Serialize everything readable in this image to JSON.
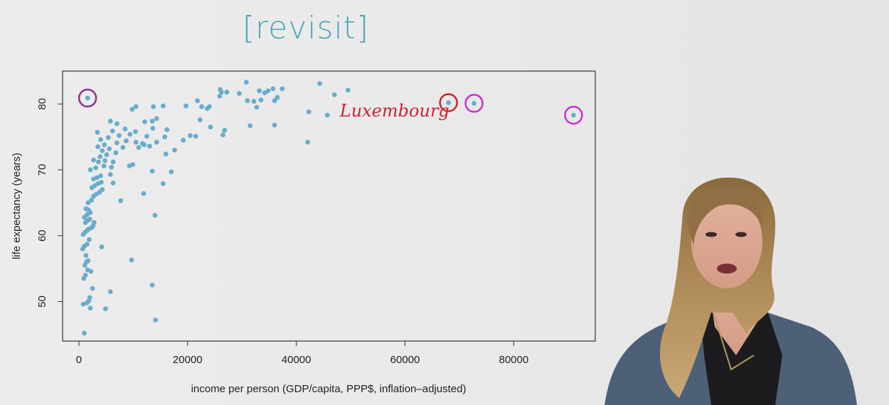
{
  "slide": {
    "title": "[revisit]"
  },
  "colors": {
    "points": "#6aaccb",
    "annotation_red": "#d3202e",
    "annotation_purple": "#8e2e8e",
    "annotation_magenta": "#d12bd1"
  },
  "chart_data": {
    "type": "scatter",
    "title": "",
    "xlabel": "income per person (GDP/capita, PPP$, inflation–adjusted)",
    "ylabel": "life expectancy (years)",
    "xlim": [
      -3000,
      95000
    ],
    "ylim": [
      44,
      85
    ],
    "xticks": [
      0,
      20000,
      40000,
      60000,
      80000
    ],
    "yticks": [
      50,
      60,
      70,
      80
    ],
    "grid": false,
    "annotations": [
      {
        "text": "Luxembourg",
        "color": "red",
        "x": 48000,
        "y": 78.1
      }
    ],
    "circled_points": [
      {
        "x": 1600,
        "y": 80.9,
        "color": "purple"
      },
      {
        "x": 68000,
        "y": 80.2,
        "color": "red"
      },
      {
        "x": 72700,
        "y": 80.1,
        "color": "magenta"
      },
      {
        "x": 91000,
        "y": 78.3,
        "color": "magenta"
      }
    ],
    "points": [
      [
        1000,
        45.2
      ],
      [
        800,
        49.6
      ],
      [
        1500,
        49.8
      ],
      [
        2000,
        50.6
      ],
      [
        1800,
        50.1
      ],
      [
        2100,
        49.0
      ],
      [
        4900,
        48.9
      ],
      [
        14100,
        47.2
      ],
      [
        13500,
        52.5
      ],
      [
        5800,
        51.5
      ],
      [
        2500,
        52.0
      ],
      [
        900,
        53.5
      ],
      [
        1200,
        54.0
      ],
      [
        1600,
        54.8
      ],
      [
        2200,
        54.6
      ],
      [
        1100,
        55.5
      ],
      [
        1400,
        56.0
      ],
      [
        1700,
        56.2
      ],
      [
        1300,
        57.0
      ],
      [
        9700,
        56.3
      ],
      [
        700,
        58.0
      ],
      [
        1000,
        58.4
      ],
      [
        1500,
        58.7
      ],
      [
        1900,
        59.4
      ],
      [
        4200,
        58.3
      ],
      [
        800,
        60.2
      ],
      [
        1100,
        60.5
      ],
      [
        1500,
        60.8
      ],
      [
        1800,
        61.0
      ],
      [
        2300,
        61.2
      ],
      [
        2600,
        61.5
      ],
      [
        1200,
        62.0
      ],
      [
        1600,
        62.3
      ],
      [
        2000,
        62.5
      ],
      [
        2800,
        62.0
      ],
      [
        1000,
        62.8
      ],
      [
        1500,
        63.2
      ],
      [
        2100,
        63.5
      ],
      [
        1300,
        64.1
      ],
      [
        1800,
        63.9
      ],
      [
        14000,
        63.1
      ],
      [
        1700,
        65.0
      ],
      [
        2300,
        65.4
      ],
      [
        2700,
        66.0
      ],
      [
        3200,
        66.3
      ],
      [
        3800,
        66.6
      ],
      [
        4300,
        67.0
      ],
      [
        11900,
        66.4
      ],
      [
        7700,
        65.3
      ],
      [
        2400,
        67.3
      ],
      [
        2900,
        67.6
      ],
      [
        3500,
        67.9
      ],
      [
        4100,
        68.1
      ],
      [
        6300,
        68.0
      ],
      [
        15500,
        67.9
      ],
      [
        2700,
        68.6
      ],
      [
        3300,
        68.8
      ],
      [
        4000,
        69.1
      ],
      [
        5800,
        69.3
      ],
      [
        13500,
        69.8
      ],
      [
        17000,
        69.7
      ],
      [
        2100,
        70.0
      ],
      [
        3100,
        70.3
      ],
      [
        4600,
        70.6
      ],
      [
        6000,
        70.4
      ],
      [
        9300,
        70.6
      ],
      [
        9900,
        70.8
      ],
      [
        2700,
        71.5
      ],
      [
        3600,
        71.2
      ],
      [
        4800,
        71.4
      ],
      [
        6300,
        71.2
      ],
      [
        3900,
        72.0
      ],
      [
        5100,
        72.3
      ],
      [
        6800,
        72.6
      ],
      [
        4300,
        72.9
      ],
      [
        5600,
        73.2
      ],
      [
        8100,
        73.4
      ],
      [
        11000,
        73.4
      ],
      [
        12000,
        73.8
      ],
      [
        13000,
        73.6
      ],
      [
        16000,
        72.4
      ],
      [
        3500,
        73.5
      ],
      [
        4700,
        73.8
      ],
      [
        7000,
        74.1
      ],
      [
        8700,
        74.4
      ],
      [
        10500,
        74.2
      ],
      [
        11700,
        74.0
      ],
      [
        14300,
        74.2
      ],
      [
        17600,
        73.0
      ],
      [
        4000,
        74.6
      ],
      [
        5400,
        74.9
      ],
      [
        7400,
        75.2
      ],
      [
        9400,
        75.4
      ],
      [
        12500,
        75.1
      ],
      [
        15800,
        75.0
      ],
      [
        19200,
        74.5
      ],
      [
        3400,
        75.7
      ],
      [
        6200,
        75.9
      ],
      [
        8500,
        76.2
      ],
      [
        10400,
        75.8
      ],
      [
        13600,
        76.3
      ],
      [
        16200,
        76.1
      ],
      [
        20500,
        75.2
      ],
      [
        21500,
        75.1
      ],
      [
        26500,
        75.3
      ],
      [
        7000,
        77.0
      ],
      [
        5800,
        77.4
      ],
      [
        13500,
        77.4
      ],
      [
        14300,
        77.8
      ],
      [
        12100,
        77.3
      ],
      [
        24200,
        76.5
      ],
      [
        26800,
        76.0
      ],
      [
        31500,
        76.7
      ],
      [
        36000,
        76.8
      ],
      [
        22300,
        77.6
      ],
      [
        9800,
        79.2
      ],
      [
        10500,
        79.6
      ],
      [
        13700,
        79.6
      ],
      [
        15500,
        79.7
      ],
      [
        19700,
        79.7
      ],
      [
        22600,
        79.6
      ],
      [
        23600,
        79.3
      ],
      [
        24000,
        79.6
      ],
      [
        21800,
        80.5
      ],
      [
        25900,
        81.2
      ],
      [
        26200,
        81.8
      ],
      [
        27200,
        81.8
      ],
      [
        29500,
        81.6
      ],
      [
        31000,
        80.5
      ],
      [
        32200,
        80.4
      ],
      [
        32700,
        79.5
      ],
      [
        33500,
        80.6
      ],
      [
        34200,
        81.7
      ],
      [
        34800,
        82.0
      ],
      [
        36000,
        80.5
      ],
      [
        36500,
        81.0
      ],
      [
        30800,
        83.3
      ],
      [
        33200,
        82.0
      ],
      [
        35700,
        82.3
      ],
      [
        37400,
        82.3
      ],
      [
        26000,
        82.2
      ],
      [
        44300,
        83.1
      ],
      [
        42300,
        78.8
      ],
      [
        45700,
        78.3
      ],
      [
        47000,
        81.4
      ],
      [
        49500,
        82.1
      ],
      [
        42100,
        74.2
      ],
      [
        1600,
        80.9
      ],
      [
        68000,
        80.2
      ],
      [
        72700,
        80.1
      ],
      [
        91000,
        78.3
      ]
    ]
  }
}
